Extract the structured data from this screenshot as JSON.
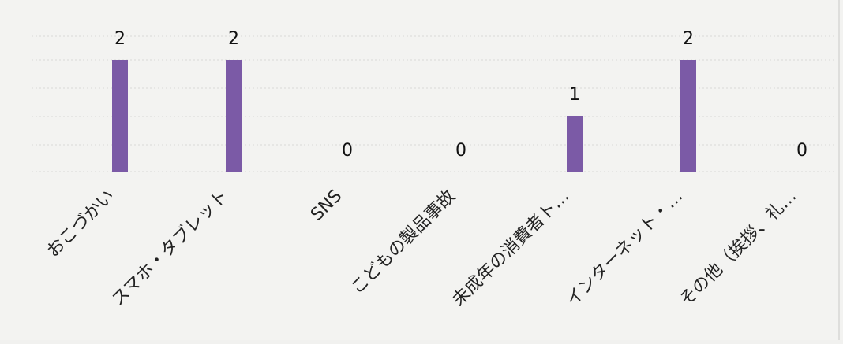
{
  "chart_data": {
    "type": "bar",
    "categories": [
      "おこづかい",
      "スマホ・タブレット",
      "SNS",
      "こどもの製品事故",
      "未成年の消費者ト…",
      "インターネット・…",
      "その他（挨拶、礼…"
    ],
    "values": [
      2,
      2,
      0,
      0,
      1,
      2,
      0
    ],
    "data_labels": [
      "2",
      "2",
      "0",
      "0",
      "1",
      "2",
      "0"
    ],
    "ylim": [
      0,
      2
    ],
    "grid": true,
    "legend": "none",
    "title": "",
    "xlabel": "",
    "ylabel": ""
  },
  "colors": {
    "bar": "#7b5aa6",
    "grid": "#d9d9d6"
  }
}
